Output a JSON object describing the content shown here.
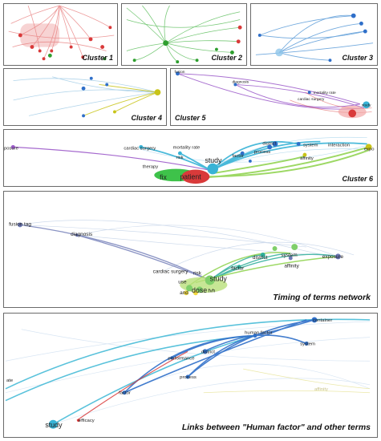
{
  "panels": {
    "cluster1": {
      "caption": "Cluster 1"
    },
    "cluster2": {
      "caption": "Cluster 2"
    },
    "cluster3": {
      "caption": "Cluster 3"
    },
    "cluster4": {
      "caption": "Cluster 4"
    },
    "cluster5": {
      "caption": "Cluster 5",
      "labels": {
        "left": "fusion",
        "mid": "diagnosis",
        "cardiac": "cardiac surgery",
        "mortality": "mortality rate",
        "study": "study"
      }
    },
    "cluster6": {
      "caption": "Cluster 6",
      "labels": {
        "exposure_left": "exposure",
        "mortality": "mortality rate",
        "cardiac": "cardiac surgery",
        "risk": "risk",
        "factor": "factor",
        "process": "process",
        "district": "district",
        "system": "system",
        "interaction": "interaction",
        "exposure_right": "expo",
        "affinity": "affinity",
        "study": "study",
        "patient": "patient",
        "therapy": "therapy",
        "fix": "fix"
      }
    },
    "timing": {
      "caption": "Timing of terms network",
      "labels": {
        "fusion": "fusion tag",
        "diagnosis": "diagnosis",
        "cardiac": "cardiac surgery",
        "risk": "risk",
        "factor": "factor",
        "district": "district",
        "system": "system",
        "affinity": "affinity",
        "exposure": "exposure",
        "study": "study",
        "use": "use",
        "dose": "dose",
        "and": "and",
        "fvh": "fvh"
      }
    },
    "links": {
      "caption": "Links between \"Human factor\" and other terms",
      "labels": {
        "human_factor": "human factor",
        "district": "district",
        "performance": "performance",
        "process": "process",
        "factor": "factor",
        "study": "study",
        "efficacy": "efficacy",
        "system": "system",
        "container": "container",
        "left_edge": "ate",
        "affinity": "affinity"
      }
    }
  },
  "colors": {
    "red": "#d93a3a",
    "green": "#2e9e2e",
    "blue": "#2f6fc9",
    "cyan": "#38b3d6",
    "olive": "#c8c418",
    "purple": "#9b59c9",
    "lightgreen": "#8cd24a"
  }
}
